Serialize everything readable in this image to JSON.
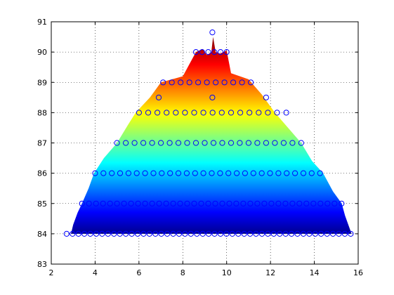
{
  "chart_data": {
    "type": "scatter",
    "title": "",
    "xlabel": "",
    "ylabel": "",
    "xlim": [
      2,
      16
    ],
    "ylim": [
      83,
      91
    ],
    "xticks": [
      2,
      4,
      6,
      8,
      10,
      12,
      14,
      16
    ],
    "yticks": [
      83,
      84,
      85,
      86,
      87,
      88,
      89,
      90,
      91
    ],
    "grid": true,
    "surface": {
      "colormap": "jet",
      "color_range": [
        84,
        90.5
      ],
      "outline": [
        [
          2.9,
          84.0
        ],
        [
          3.0,
          84.3
        ],
        [
          3.2,
          84.7
        ],
        [
          3.4,
          85.0
        ],
        [
          3.7,
          85.5
        ],
        [
          3.95,
          86.0
        ],
        [
          4.4,
          86.5
        ],
        [
          5.0,
          87.0
        ],
        [
          5.5,
          87.6
        ],
        [
          5.85,
          88.0
        ],
        [
          6.5,
          88.5
        ],
        [
          7.0,
          89.0
        ],
        [
          8.0,
          89.2
        ],
        [
          8.6,
          90.0
        ],
        [
          8.9,
          90.1
        ],
        [
          9.1,
          89.9
        ],
        [
          9.3,
          90.0
        ],
        [
          9.38,
          90.5
        ],
        [
          9.5,
          90.0
        ],
        [
          9.7,
          89.95
        ],
        [
          10.0,
          90.05
        ],
        [
          10.2,
          89.3
        ],
        [
          11.0,
          89.1
        ],
        [
          11.6,
          88.6
        ],
        [
          12.2,
          88.0
        ],
        [
          12.8,
          87.5
        ],
        [
          13.4,
          87.0
        ],
        [
          13.9,
          86.4
        ],
        [
          14.4,
          86.0
        ],
        [
          14.85,
          85.4
        ],
        [
          15.25,
          85.0
        ],
        [
          15.4,
          84.6
        ],
        [
          15.6,
          84.2
        ],
        [
          15.7,
          84.0
        ]
      ]
    },
    "series": [
      {
        "marker": "circle",
        "color": "#0000ff",
        "levels": [
          {
            "y": 84,
            "x_min": 2.7,
            "x_max": 15.9,
            "step": 0.27
          },
          {
            "y": 85,
            "x_min": 3.4,
            "x_max": 15.3,
            "step": 0.32
          },
          {
            "y": 86,
            "x_min": 4.0,
            "x_max": 14.6,
            "step": 0.38
          },
          {
            "y": 87,
            "x_min": 5.0,
            "x_max": 13.5,
            "step": 0.4
          },
          {
            "y": 88,
            "x_min": 6.0,
            "x_max": 12.8,
            "step": 0.42
          },
          {
            "y": 88.5,
            "x_min": 6.9,
            "x_max": 11.8,
            "step": 2.45
          },
          {
            "y": 89,
            "x_min": 7.1,
            "x_max": 11.3,
            "step": 0.4
          },
          {
            "y": 90,
            "x_min": 8.6,
            "x_max": 10.1,
            "step": 0.28
          },
          {
            "y": 90.65,
            "x_min": 9.35,
            "x_max": 9.35,
            "step": 1
          }
        ]
      }
    ]
  }
}
